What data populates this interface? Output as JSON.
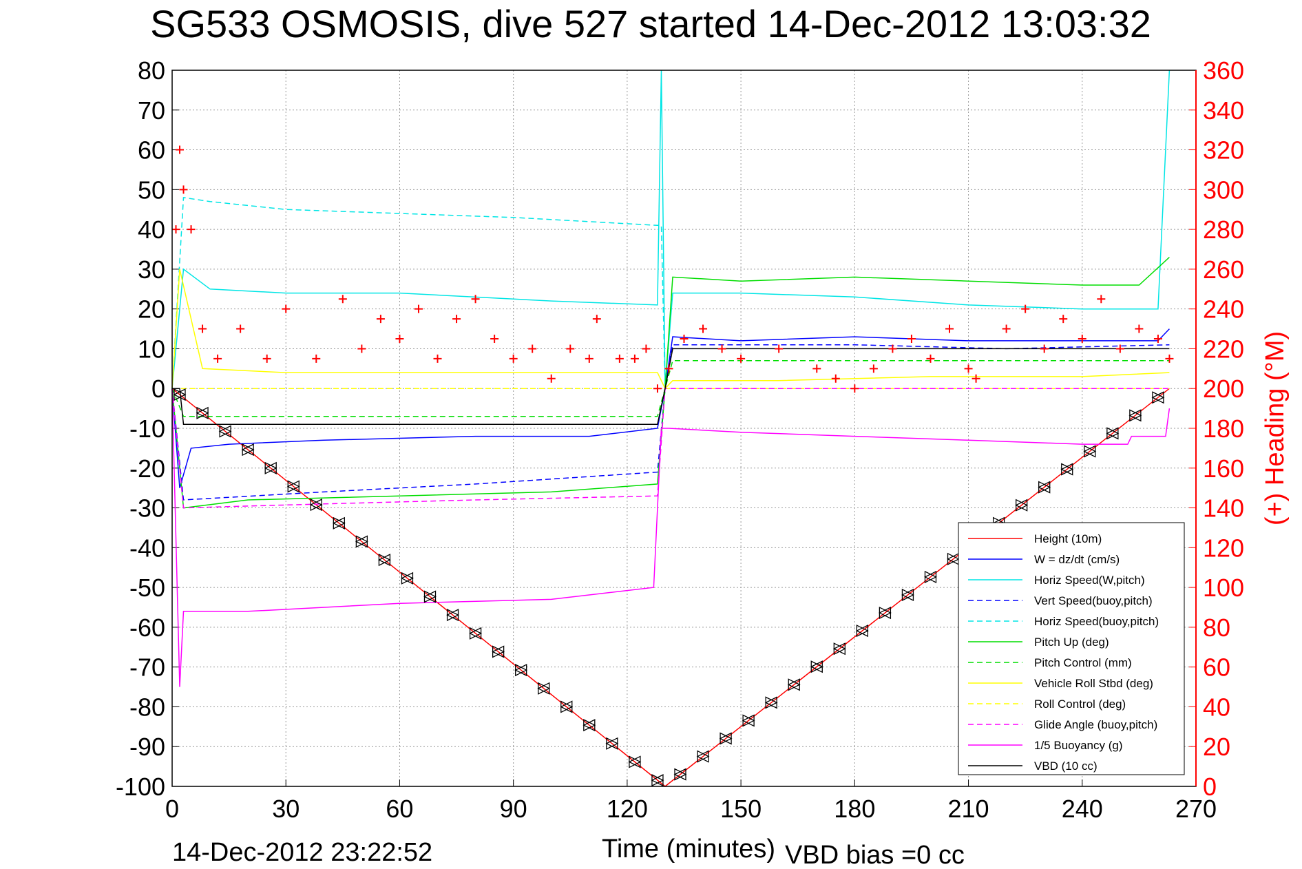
{
  "chart_data": {
    "type": "line",
    "title": "SG533 OSMOSIS, dive 527 started 14-Dec-2012 13:03:32",
    "xlabel": "Time (minutes)",
    "ylabel": "",
    "y2label": "(+) Heading (°M)",
    "xlim": [
      0,
      270
    ],
    "ylim": [
      -100,
      80
    ],
    "y2lim": [
      0,
      360
    ],
    "xticks": [
      "0",
      "30",
      "60",
      "90",
      "120",
      "150",
      "180",
      "210",
      "240",
      "270"
    ],
    "yticks": [
      "80",
      "70",
      "60",
      "50",
      "40",
      "30",
      "20",
      "10",
      "0",
      "-10",
      "-20",
      "-30",
      "-40",
      "-50",
      "-60",
      "-70",
      "-80",
      "-90",
      "-100"
    ],
    "y2ticks": [
      "360",
      "340",
      "320",
      "300",
      "280",
      "260",
      "240",
      "220",
      "200",
      "180",
      "160",
      "140",
      "120",
      "100",
      "80",
      "60",
      "40",
      "20",
      "0"
    ],
    "grid": true,
    "legend_position": "bottom-right",
    "footer_left": "14-Dec-2012 23:22:52",
    "footer_right": "VBD bias =0 cc",
    "series": [
      {
        "name": "Height (10m)",
        "color": "#ff0000",
        "style": "solid",
        "x": [
          0,
          130,
          263
        ],
        "y": [
          0,
          -100,
          0
        ]
      },
      {
        "name": "W = dz/dt (cm/s)",
        "color": "#0000ff",
        "style": "solid",
        "x": [
          0,
          2,
          5,
          15,
          40,
          80,
          110,
          128,
          130,
          132,
          150,
          180,
          210,
          240,
          260,
          263
        ],
        "y": [
          0,
          -25,
          -15,
          -14,
          -13,
          -12,
          -12,
          -10,
          0,
          13,
          12,
          13,
          12,
          12,
          12,
          15
        ]
      },
      {
        "name": "Horiz Speed(W,pitch)",
        "color": "#00e5e5",
        "style": "solid",
        "x": [
          0,
          3,
          10,
          30,
          60,
          100,
          128,
          129,
          130,
          132,
          150,
          180,
          210,
          240,
          260,
          263
        ],
        "y": [
          0,
          30,
          25,
          24,
          24,
          22,
          21,
          80,
          0,
          24,
          24,
          23,
          21,
          20,
          20,
          80
        ]
      },
      {
        "name": "Vert Speed(buoy,pitch)",
        "color": "#0000ff",
        "style": "dashed",
        "x": [
          0,
          3,
          40,
          80,
          128,
          130,
          132,
          180,
          220,
          263
        ],
        "y": [
          0,
          -28,
          -26,
          -24,
          -21,
          0,
          11,
          11,
          10,
          11
        ]
      },
      {
        "name": "Horiz Speed(buoy,pitch)",
        "color": "#00e5e5",
        "style": "dashed",
        "x": [
          0,
          3,
          10,
          30,
          60,
          90,
          128,
          129,
          130
        ],
        "y": [
          0,
          48,
          47,
          45,
          44,
          43,
          41,
          41,
          0
        ]
      },
      {
        "name": "Pitch Up (deg)",
        "color": "#00dd00",
        "style": "solid",
        "x": [
          0,
          3,
          20,
          60,
          100,
          128,
          130,
          132,
          150,
          180,
          210,
          240,
          255,
          263
        ],
        "y": [
          0,
          -30,
          -28,
          -27,
          -26,
          -24,
          0,
          28,
          27,
          28,
          27,
          26,
          26,
          33
        ]
      },
      {
        "name": "Pitch Control (mm)",
        "color": "#00dd00",
        "style": "dashed",
        "x": [
          0,
          3,
          128,
          130,
          132,
          263
        ],
        "y": [
          0,
          -7,
          -7,
          0,
          7,
          7
        ]
      },
      {
        "name": "Vehicle Roll Stbd (deg)",
        "color": "#ffff00",
        "style": "solid",
        "x": [
          0,
          2,
          8,
          30,
          60,
          90,
          128,
          130,
          132,
          160,
          200,
          240,
          263
        ],
        "y": [
          0,
          30,
          5,
          4,
          4,
          4,
          4,
          0,
          2,
          2,
          3,
          3,
          4
        ]
      },
      {
        "name": "Roll Control (deg)",
        "color": "#ffff00",
        "style": "dashed",
        "x": [
          0,
          130,
          263
        ],
        "y": [
          0,
          0,
          0
        ]
      },
      {
        "name": "Glide Angle (buoy,pitch)",
        "color": "#ff00ff",
        "style": "dashed",
        "x": [
          0,
          3,
          40,
          80,
          128,
          130,
          132,
          263
        ],
        "y": [
          0,
          -30,
          -29,
          -28,
          -27,
          0,
          0,
          0
        ]
      },
      {
        "name": "1/5 Buoyancy (g)",
        "color": "#ff00ff",
        "style": "solid",
        "x": [
          0,
          2,
          3,
          20,
          60,
          100,
          127,
          129,
          131,
          150,
          180,
          210,
          240,
          252,
          253,
          262,
          263
        ],
        "y": [
          0,
          -75,
          -56,
          -56,
          -54,
          -53,
          -50,
          -10,
          -10,
          -11,
          -12,
          -13,
          -14,
          -14,
          -12,
          -12,
          -5
        ]
      },
      {
        "name": "VBD (10 cc)",
        "color": "#000000",
        "style": "solid",
        "x": [
          0,
          2,
          3,
          128,
          130,
          132,
          263
        ],
        "y": [
          0,
          0,
          -9,
          -9,
          0,
          10,
          10
        ]
      },
      {
        "name": "(+) Heading",
        "color": "#ff0000",
        "style": "plus",
        "axis": "right",
        "x": [
          1,
          2,
          3,
          5,
          8,
          12,
          18,
          25,
          30,
          38,
          45,
          50,
          55,
          60,
          65,
          70,
          75,
          80,
          85,
          90,
          95,
          100,
          105,
          110,
          112,
          118,
          122,
          125,
          128,
          131,
          135,
          140,
          145,
          150,
          160,
          170,
          175,
          180,
          185,
          190,
          195,
          200,
          205,
          210,
          212,
          220,
          225,
          230,
          235,
          240,
          245,
          250,
          255,
          260,
          263
        ],
        "y": [
          280,
          320,
          300,
          280,
          230,
          215,
          230,
          215,
          240,
          215,
          245,
          220,
          235,
          225,
          240,
          215,
          235,
          245,
          225,
          215,
          220,
          205,
          220,
          215,
          235,
          215,
          215,
          220,
          200,
          210,
          225,
          230,
          220,
          215,
          220,
          210,
          205,
          200,
          210,
          220,
          225,
          215,
          230,
          210,
          205,
          230,
          240,
          220,
          235,
          225,
          245,
          220,
          230,
          225,
          215
        ]
      }
    ]
  }
}
